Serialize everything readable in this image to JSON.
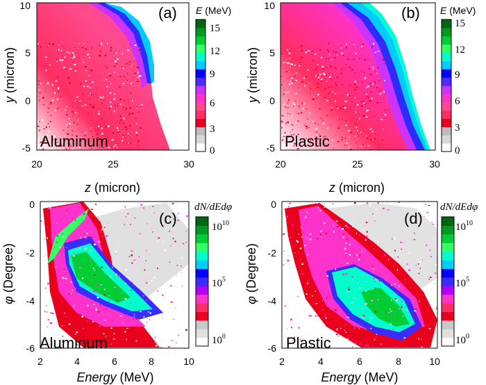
{
  "colors": {
    "energy_scale": [
      "#ffffff",
      "#d8d8d8",
      "#bdbdbd",
      "#e8001c",
      "#ff2e63",
      "#ff4a8c",
      "#ff33cc",
      "#cc33ff",
      "#4a2cff",
      "#0000ff",
      "#00ccff",
      "#00ffcc",
      "#33ff66",
      "#00cc33",
      "#009922",
      "#006611"
    ],
    "count_scale": [
      "#ffffff",
      "#e0e0e0",
      "#c8c8c8",
      "#e8001c",
      "#ff2e63",
      "#ff33cc",
      "#b000ff",
      "#3a2cff",
      "#0000ff",
      "#00ccff",
      "#00ffcc",
      "#33ff66",
      "#00cc33",
      "#009922",
      "#006611"
    ]
  },
  "panels": {
    "a": {
      "letter": "(a)",
      "material": "Aluminum",
      "xlabel_italic": "z",
      "xlabel_rest": " (micron)",
      "ylabel_italic": "y",
      "ylabel_rest": " (micron)",
      "colorbar_title_italic": "E",
      "colorbar_title_rest": " (MeV)",
      "xticks": [
        "20",
        "25",
        "30"
      ],
      "yticks": [
        "10",
        "5",
        "0",
        "-5"
      ],
      "cbticks": [
        "15",
        "12",
        "9",
        "6",
        "3",
        "0"
      ]
    },
    "b": {
      "letter": "(b)",
      "material": "Plastic",
      "xlabel_italic": "z",
      "xlabel_rest": " (micron)",
      "ylabel_italic": "y",
      "ylabel_rest": " (micron)",
      "colorbar_title_italic": "E",
      "colorbar_title_rest": " (MeV)",
      "xticks": [
        "20",
        "25",
        "30"
      ],
      "yticks": [
        "10",
        "5",
        "0",
        "-5"
      ],
      "cbticks": [
        "15",
        "12",
        "9",
        "6",
        "3",
        "0"
      ]
    },
    "c": {
      "letter": "(c)",
      "material": "Aluminum",
      "xlabel_italic": "Energy",
      "xlabel_rest": " (MeV)",
      "ylabel_italic": "φ",
      "ylabel_rest": " (Degree)",
      "colorbar_title": "dN/dEdφ",
      "xticks": [
        "2",
        "4",
        "6",
        "8",
        "10"
      ],
      "yticks": [
        "0",
        "-2",
        "-4",
        "-6"
      ],
      "cbticks": [
        "10",
        "10",
        "10"
      ],
      "cbexps": [
        "10",
        "5",
        "0"
      ]
    },
    "d": {
      "letter": "(d)",
      "material": "Plastic",
      "xlabel_italic": "Energy",
      "xlabel_rest": " (MeV)",
      "ylabel_italic": "φ",
      "ylabel_rest": " (Degree)",
      "colorbar_title": "dN/dEdφ",
      "xticks": [
        "2",
        "4",
        "6",
        "8",
        "10"
      ],
      "yticks": [
        "0",
        "-2",
        "-4",
        "-6"
      ],
      "cbticks": [
        "10",
        "10",
        "10"
      ],
      "cbexps": [
        "10",
        "5",
        "0"
      ]
    }
  }
}
